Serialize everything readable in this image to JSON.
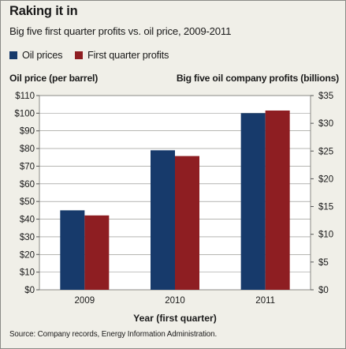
{
  "title": "Raking it in",
  "subtitle": "Big five first quarter profits vs. oil price, 2009-2011",
  "source": "Source: Company records, Energy Information Administration.",
  "colors": {
    "oil": "#173a6b",
    "profits": "#8e1e22",
    "panel": "#f0efe8",
    "grid": "#8a8a85"
  },
  "chart_data": {
    "type": "bar",
    "categories": [
      "2009",
      "2010",
      "2011"
    ],
    "xlabel": "Year (first quarter)",
    "y_left": {
      "label": "Oil price (per barrel)",
      "range": [
        0,
        110
      ],
      "ticks": [
        "$0",
        "$10",
        "$20",
        "$30",
        "$40",
        "$50",
        "$60",
        "$70",
        "$80",
        "$90",
        "$100",
        "$110"
      ]
    },
    "y_right": {
      "label": "Big five oil company profits (billions)",
      "range": [
        0,
        35
      ],
      "ticks": [
        "$0",
        "$5",
        "$10",
        "$15",
        "$20",
        "$25",
        "$30",
        "$35"
      ]
    },
    "series": [
      {
        "name": "Oil prices",
        "axis": "left",
        "values": [
          45,
          79,
          100
        ]
      },
      {
        "name": "First quarter profits",
        "axis": "right",
        "values": [
          13.4,
          24.1,
          32.3
        ]
      }
    ],
    "grid": true,
    "legend": "top-left"
  }
}
